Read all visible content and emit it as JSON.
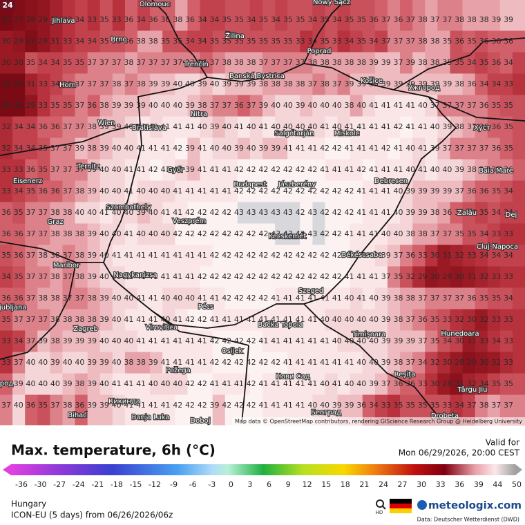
{
  "badge": "24",
  "title": "Max. temperature, 6h (°C)",
  "valid_label": "Valid for",
  "valid_time": "Mon 06/29/2026, 20:00 CEST",
  "region": "Hungary",
  "model_run": "ICON-EU (5 days) from 06/26/2026/06z",
  "hd": "HD",
  "brand": "meteologix.com",
  "data_source": "Data: Deutscher Wetterdienst (DWD)",
  "attribution": "Map data © OpenStreetMap contributors, rendering GIScience Research Group @ Heidelberg University",
  "legend": {
    "labels": [
      -36,
      -30,
      -27,
      -24,
      -21,
      -18,
      -15,
      -12,
      -9,
      -6,
      -3,
      0,
      3,
      6,
      9,
      12,
      15,
      18,
      21,
      24,
      27,
      30,
      33,
      36,
      39,
      44,
      50
    ]
  },
  "cities": [
    "Olomouc",
    "Nowy Sącz",
    "Jihlava",
    "Žilina",
    "Brno",
    "Poprad",
    "Trenčín",
    "Banská Bystrica",
    "Košice",
    "Ужгород",
    "Horn",
    "Nitra",
    "Wien",
    "Bratislava",
    "Salgótarján",
    "Miskolc",
    "Хуст",
    "Eisenerz",
    "Ternitz",
    "Győr",
    "Budapest",
    "Jászberény",
    "Debrecen",
    "Baia Mare",
    "Szombathely",
    "Veszprém",
    "Graz",
    "Zalău",
    "Dej",
    "Kecskemét",
    "Békéscsaba",
    "Cluj-Napoca",
    "Maribor",
    "Nagykanizsa",
    "Szeged",
    "Ljubljana",
    "Pécs",
    "Zagreb",
    "Virovitica",
    "Bačka Topola",
    "Timișoara",
    "Hunedoara",
    "Osijek",
    "Požega",
    "Нови Сад",
    "Reșița",
    "Târgu Jiu",
    "Bihać",
    "Banja Luka",
    "Doboj",
    "Београд",
    "Drobeta",
    "Брод",
    "Кикинда"
  ],
  "grid": {
    "rows": [
      [
        25,
        27,
        28,
        29,
        31,
        33,
        34,
        33,
        35,
        33,
        36,
        34,
        36,
        36,
        38,
        36,
        34,
        34,
        35,
        35,
        34,
        35,
        34,
        35,
        35,
        34,
        35,
        34,
        35,
        35,
        36,
        37,
        36,
        37,
        38,
        37,
        37,
        38,
        38,
        38,
        39,
        39
      ],
      [
        30,
        29,
        27,
        29,
        31,
        33,
        34,
        34,
        35,
        35,
        36,
        38,
        38,
        35,
        35,
        34,
        34,
        35,
        35,
        35,
        35,
        35,
        35,
        35,
        33,
        34,
        35,
        33,
        34,
        35,
        34,
        37,
        37,
        37,
        38,
        38,
        35,
        36,
        35,
        36,
        36,
        36
      ],
      [
        30,
        30,
        35,
        34,
        34,
        35,
        35,
        37,
        37,
        37,
        38,
        37,
        37,
        37,
        37,
        37,
        36,
        37,
        38,
        38,
        38,
        37,
        37,
        37,
        37,
        38,
        38,
        38,
        38,
        38,
        39,
        39,
        37,
        39,
        38,
        38,
        35,
        35,
        34,
        35,
        36,
        34
      ],
      [
        26,
        26,
        31,
        33,
        34,
        36,
        37,
        37,
        37,
        38,
        37,
        38,
        39,
        39,
        40,
        40,
        39,
        40,
        39,
        39,
        39,
        38,
        38,
        38,
        38,
        37,
        38,
        37,
        39,
        39,
        39,
        39,
        39,
        39,
        39,
        39,
        39,
        38,
        36,
        34,
        34,
        33
      ],
      [
        26,
        25,
        29,
        33,
        35,
        35,
        37,
        36,
        38,
        39,
        39,
        39,
        40,
        40,
        40,
        39,
        38,
        37,
        37,
        36,
        37,
        39,
        40,
        40,
        39,
        40,
        40,
        40,
        38,
        40,
        41,
        41,
        41,
        41,
        40,
        37,
        37,
        37,
        37,
        36,
        35,
        35
      ],
      [
        32,
        34,
        34,
        36,
        36,
        37,
        37,
        38,
        39,
        39,
        40,
        41,
        40,
        41,
        41,
        41,
        40,
        39,
        40,
        41,
        40,
        41,
        40,
        40,
        40,
        40,
        41,
        40,
        41,
        41,
        41,
        41,
        42,
        41,
        41,
        40,
        39,
        38,
        37,
        36,
        36,
        35
      ],
      [
        32,
        34,
        34,
        35,
        37,
        37,
        39,
        38,
        39,
        40,
        40,
        41,
        41,
        41,
        42,
        39,
        41,
        40,
        40,
        39,
        40,
        39,
        39,
        41,
        41,
        41,
        42,
        42,
        41,
        41,
        41,
        42,
        41,
        40,
        41,
        39,
        37,
        37,
        37,
        37,
        36,
        35
      ],
      [
        33,
        33,
        36,
        35,
        37,
        37,
        37,
        39,
        40,
        40,
        41,
        41,
        42,
        41,
        40,
        39,
        41,
        41,
        41,
        42,
        42,
        42,
        42,
        42,
        42,
        42,
        41,
        41,
        41,
        42,
        41,
        41,
        41,
        40,
        41,
        40,
        40,
        39,
        38,
        37,
        37,
        36
      ],
      [
        33,
        34,
        35,
        36,
        36,
        37,
        38,
        39,
        40,
        40,
        41,
        40,
        40,
        40,
        41,
        41,
        41,
        41,
        41,
        42,
        42,
        42,
        42,
        42,
        42,
        42,
        42,
        42,
        42,
        41,
        41,
        41,
        40,
        39,
        39,
        39,
        39,
        37,
        36,
        36,
        35,
        34
      ],
      [
        36,
        35,
        37,
        37,
        38,
        38,
        40,
        40,
        41,
        40,
        40,
        39,
        40,
        41,
        41,
        42,
        42,
        42,
        42,
        43,
        43,
        43,
        43,
        43,
        42,
        43,
        42,
        42,
        42,
        41,
        41,
        41,
        40,
        39,
        39,
        38,
        36,
        35,
        34,
        35,
        34,
        34
      ],
      [
        36,
        36,
        37,
        37,
        38,
        38,
        38,
        39,
        40,
        40,
        41,
        40,
        40,
        40,
        42,
        42,
        42,
        42,
        42,
        42,
        42,
        42,
        43,
        43,
        42,
        43,
        42,
        42,
        41,
        41,
        41,
        40,
        40,
        38,
        38,
        37,
        37,
        35,
        35,
        34,
        33,
        33
      ],
      [
        35,
        36,
        37,
        38,
        38,
        37,
        38,
        39,
        40,
        41,
        41,
        41,
        41,
        41,
        41,
        41,
        41,
        42,
        42,
        42,
        42,
        42,
        42,
        42,
        42,
        42,
        42,
        42,
        41,
        41,
        40,
        39,
        37,
        36,
        33,
        30,
        31,
        32,
        33,
        34,
        34,
        34
      ],
      [
        34,
        35,
        37,
        37,
        38,
        37,
        38,
        39,
        40,
        40,
        41,
        41,
        41,
        41,
        41,
        41,
        42,
        42,
        42,
        42,
        42,
        42,
        42,
        42,
        42,
        42,
        42,
        42,
        41,
        41,
        41,
        37,
        35,
        32,
        29,
        30,
        29,
        30,
        31,
        32,
        33,
        33
      ],
      [
        36,
        36,
        37,
        38,
        38,
        37,
        37,
        38,
        39,
        40,
        40,
        41,
        41,
        40,
        40,
        40,
        41,
        41,
        42,
        42,
        42,
        42,
        41,
        41,
        41,
        41,
        41,
        41,
        40,
        41,
        40,
        39,
        38,
        38,
        37,
        37,
        37,
        37,
        36,
        35,
        35,
        34
      ],
      [
        35,
        37,
        37,
        37,
        38,
        38,
        38,
        38,
        39,
        40,
        41,
        41,
        41,
        40,
        41,
        42,
        42,
        41,
        41,
        41,
        41,
        41,
        41,
        41,
        41,
        41,
        40,
        40,
        40,
        40,
        40,
        39,
        38,
        37,
        36,
        35,
        33,
        32,
        30,
        32,
        33,
        33
      ],
      [
        33,
        34,
        37,
        39,
        38,
        39,
        39,
        39,
        40,
        40,
        40,
        41,
        41,
        41,
        41,
        41,
        41,
        42,
        42,
        42,
        42,
        41,
        41,
        41,
        41,
        41,
        41,
        40,
        40,
        40,
        40,
        39,
        39,
        39,
        37,
        35,
        34,
        30,
        31,
        33,
        34,
        33
      ],
      [
        33,
        37,
        40,
        40,
        39,
        40,
        40,
        39,
        39,
        40,
        38,
        38,
        39,
        41,
        41,
        41,
        41,
        42,
        42,
        42,
        42,
        42,
        42,
        41,
        41,
        41,
        41,
        41,
        41,
        40,
        40,
        39,
        38,
        37,
        34,
        32,
        30,
        28,
        29,
        30,
        32,
        33
      ],
      [
        36,
        39,
        40,
        40,
        40,
        39,
        38,
        39,
        40,
        41,
        41,
        41,
        40,
        40,
        40,
        42,
        42,
        41,
        41,
        41,
        42,
        41,
        41,
        41,
        41,
        41,
        40,
        41,
        40,
        40,
        39,
        37,
        36,
        36,
        33,
        30,
        28,
        31,
        32,
        34,
        35,
        35
      ],
      [
        37,
        40,
        36,
        35,
        37,
        38,
        36,
        39,
        39,
        40,
        41,
        41,
        41,
        41,
        42,
        42,
        42,
        39,
        42,
        42,
        42,
        41,
        41,
        41,
        41,
        40,
        40,
        39,
        39,
        36,
        34,
        33,
        35,
        35,
        35,
        35,
        33,
        34,
        37,
        38,
        37,
        37
      ]
    ]
  }
}
